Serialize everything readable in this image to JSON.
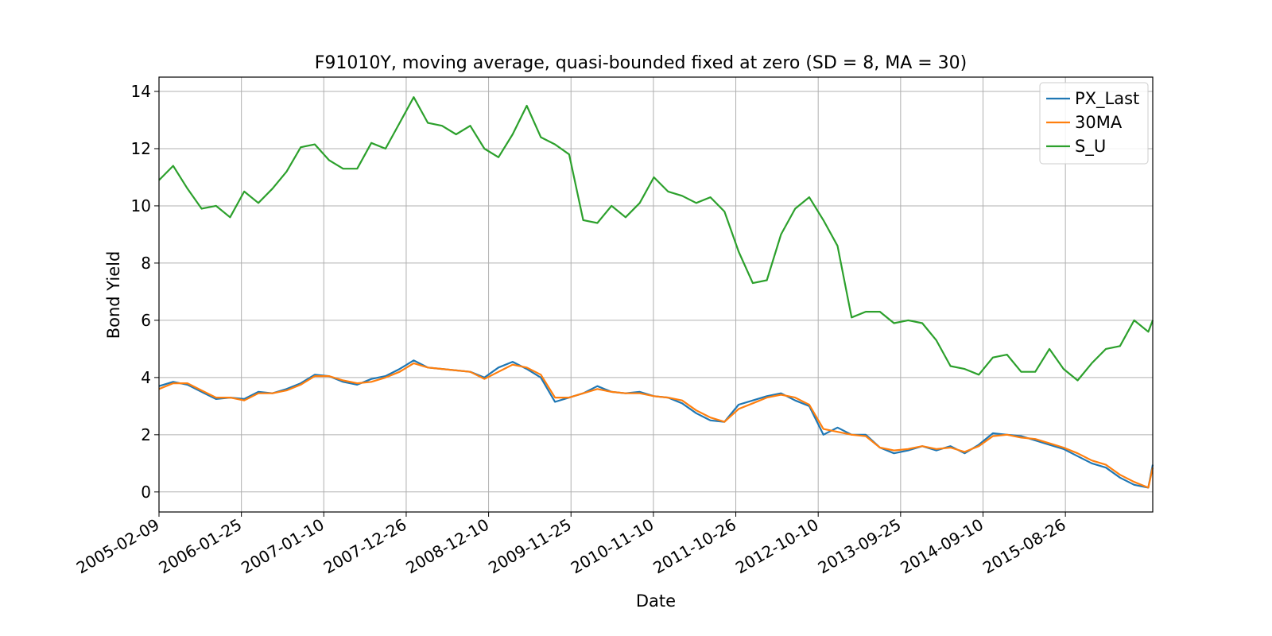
{
  "chart_data": {
    "type": "line",
    "title": "F91010Y, moving average, quasi-bounded fixed at zero (SD = 8, MA = 30)",
    "xlabel": "Date",
    "ylabel": "Bond Yield",
    "xlim": [
      "2005-02-09",
      "2016-08-31"
    ],
    "ylim": [
      -0.7,
      14.5
    ],
    "grid": true,
    "legend_position": "top-right",
    "x_tick_labels": [
      "2005-02-09",
      "2006-01-25",
      "2007-01-10",
      "2007-12-26",
      "2008-12-10",
      "2009-11-25",
      "2010-11-10",
      "2011-10-26",
      "2012-10-10",
      "2013-09-25",
      "2014-09-10",
      "2015-08-26"
    ],
    "y_ticks": [
      0,
      2,
      4,
      6,
      8,
      10,
      12,
      14
    ],
    "x": [
      "2005-02-09",
      "2005-04-10",
      "2005-06-10",
      "2005-08-09",
      "2005-10-09",
      "2005-12-08",
      "2006-02-06",
      "2006-04-07",
      "2006-06-06",
      "2006-08-05",
      "2006-10-04",
      "2006-12-03",
      "2007-02-01",
      "2007-04-02",
      "2007-06-01",
      "2007-07-31",
      "2007-09-29",
      "2007-11-28",
      "2008-01-27",
      "2008-03-27",
      "2008-05-26",
      "2008-07-25",
      "2008-09-23",
      "2008-11-22",
      "2009-01-21",
      "2009-03-22",
      "2009-05-21",
      "2009-07-20",
      "2009-09-18",
      "2009-11-17",
      "2010-01-16",
      "2010-03-17",
      "2010-05-16",
      "2010-07-15",
      "2010-09-13",
      "2010-11-12",
      "2011-01-11",
      "2011-03-12",
      "2011-05-11",
      "2011-07-10",
      "2011-09-08",
      "2011-11-07",
      "2012-01-06",
      "2012-03-06",
      "2012-05-05",
      "2012-07-04",
      "2012-09-02",
      "2012-11-01",
      "2012-12-31",
      "2013-03-01",
      "2013-04-30",
      "2013-06-29",
      "2013-08-28",
      "2013-10-27",
      "2013-12-26",
      "2014-02-24",
      "2014-04-25",
      "2014-06-24",
      "2014-08-23",
      "2014-10-22",
      "2014-12-21",
      "2015-02-19",
      "2015-04-20",
      "2015-06-19",
      "2015-08-18",
      "2015-10-17",
      "2015-12-16",
      "2016-02-14",
      "2016-04-14",
      "2016-06-13",
      "2016-08-12",
      "2016-08-31"
    ],
    "series": [
      {
        "name": "PX_Last",
        "color": "#1f77b4",
        "values": [
          3.7,
          3.85,
          3.75,
          3.5,
          3.25,
          3.3,
          3.25,
          3.5,
          3.45,
          3.6,
          3.8,
          4.1,
          4.05,
          3.85,
          3.75,
          3.95,
          4.05,
          4.3,
          4.6,
          4.35,
          4.3,
          4.25,
          4.2,
          4.0,
          4.35,
          4.55,
          4.3,
          4.0,
          3.15,
          3.3,
          3.45,
          3.7,
          3.5,
          3.45,
          3.5,
          3.35,
          3.3,
          3.1,
          2.75,
          2.5,
          2.45,
          3.05,
          3.2,
          3.35,
          3.45,
          3.2,
          3.0,
          2.0,
          2.25,
          2.0,
          2.0,
          1.55,
          1.35,
          1.45,
          1.6,
          1.45,
          1.6,
          1.35,
          1.65,
          2.05,
          2.0,
          1.95,
          1.8,
          1.65,
          1.5,
          1.25,
          1.0,
          0.85,
          0.5,
          0.25,
          0.15,
          0.95
        ]
      },
      {
        "name": "30MA",
        "color": "#ff7f0e",
        "values": [
          3.6,
          3.8,
          3.8,
          3.55,
          3.3,
          3.3,
          3.2,
          3.45,
          3.45,
          3.55,
          3.75,
          4.05,
          4.05,
          3.9,
          3.8,
          3.85,
          4.0,
          4.2,
          4.5,
          4.35,
          4.3,
          4.25,
          4.2,
          3.95,
          4.2,
          4.45,
          4.35,
          4.1,
          3.3,
          3.3,
          3.45,
          3.6,
          3.5,
          3.45,
          3.45,
          3.35,
          3.3,
          3.2,
          2.85,
          2.6,
          2.45,
          2.9,
          3.1,
          3.3,
          3.4,
          3.3,
          3.05,
          2.2,
          2.1,
          2.0,
          1.95,
          1.55,
          1.45,
          1.5,
          1.6,
          1.5,
          1.55,
          1.4,
          1.6,
          1.95,
          2.0,
          1.9,
          1.85,
          1.7,
          1.55,
          1.35,
          1.1,
          0.95,
          0.6,
          0.35,
          0.15,
          0.85
        ]
      },
      {
        "name": "S_U",
        "color": "#2ca02c",
        "values": [
          10.9,
          11.4,
          10.6,
          9.9,
          10.0,
          9.6,
          10.5,
          10.1,
          10.6,
          11.2,
          12.05,
          12.15,
          11.6,
          11.3,
          11.3,
          12.2,
          12.0,
          12.9,
          13.8,
          12.9,
          12.8,
          12.5,
          12.8,
          12.0,
          11.7,
          12.5,
          13.5,
          12.4,
          12.15,
          11.8,
          9.5,
          9.4,
          10.0,
          9.6,
          10.1,
          11.0,
          10.5,
          10.35,
          10.1,
          10.3,
          9.8,
          8.4,
          7.3,
          7.4,
          9.0,
          9.9,
          10.3,
          9.5,
          8.6,
          6.1,
          6.3,
          6.3,
          5.9,
          6.0,
          5.9,
          5.3,
          4.4,
          4.3,
          4.1,
          4.7,
          4.8,
          4.2,
          4.2,
          5.0,
          4.3,
          3.9,
          4.5,
          5.0,
          5.1,
          6.0,
          5.6,
          6.0
        ]
      }
    ]
  }
}
